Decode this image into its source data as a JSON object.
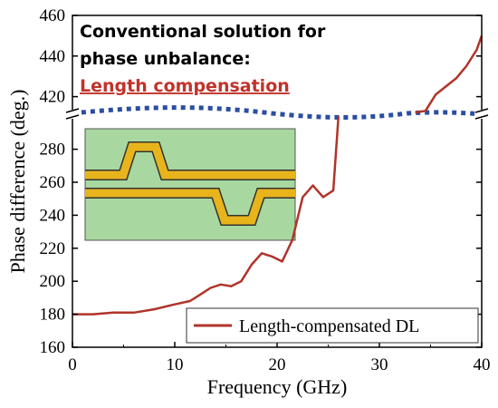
{
  "chart_data": {
    "type": "line",
    "xlabel": "Frequency (GHz)",
    "ylabel": "Phase difference (deg.)",
    "x_ticks": [
      "0",
      "10",
      "20",
      "30",
      "40"
    ],
    "y_ticks_lower": [
      "160",
      "180",
      "200",
      "220",
      "240",
      "260",
      "280"
    ],
    "y_ticks_upper": [
      "420",
      "440",
      "460"
    ],
    "xlim": [
      0,
      40
    ],
    "ylim_lower": [
      160,
      295
    ],
    "ylim_upper": [
      405,
      460
    ],
    "axis_break": true,
    "legend_position": "bottom-right",
    "annotation": {
      "line1": "Conventional solution for",
      "line2": "phase unbalance:",
      "line3": "Length compensation"
    },
    "series": [
      {
        "name": "Length-compensated DL",
        "color": "#b0342a",
        "x": [
          0,
          2,
          4,
          6,
          8,
          10,
          11.5,
          12.5,
          13.5,
          14.5,
          15.5,
          16.5,
          17.5,
          18.5,
          19.5,
          20.5,
          21.5,
          22.5,
          23.5,
          24.5,
          25.5,
          26
        ],
        "y_lower": [
          180,
          180,
          181,
          181,
          183,
          186,
          188,
          192,
          196,
          198,
          197,
          200,
          210,
          217,
          215,
          212,
          225,
          251,
          258,
          251,
          255,
          300
        ]
      },
      {
        "name": "Length-compensated DL (upper segment)",
        "color": "#b0342a",
        "x": [
          33.5,
          34.5,
          35.5,
          36.5,
          37.5,
          38.5,
          39.5,
          40
        ],
        "y_upper": [
          405,
          413,
          421,
          425,
          429,
          435,
          443,
          450
        ]
      }
    ]
  },
  "colors": {
    "curve": "#b0342a",
    "break_dots": "#2a4ea0",
    "inset_bg": "#a8d8a0",
    "inset_line": "#e8b41c",
    "annotation_red": "#c0332a"
  }
}
